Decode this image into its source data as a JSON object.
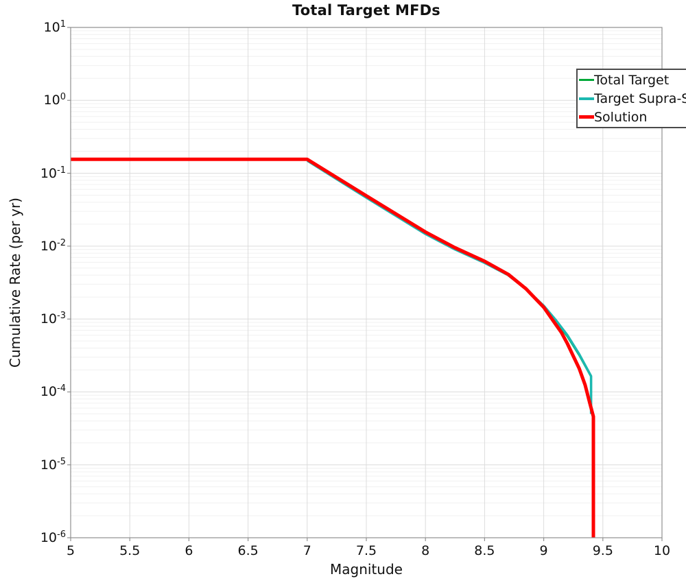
{
  "chart_data": {
    "type": "line",
    "title": "Total Target MFDs",
    "xlabel": "Magnitude",
    "ylabel": "Cumulative Rate (per yr)",
    "xlim": [
      5,
      10
    ],
    "ylim": [
      1e-06,
      10
    ],
    "yscale": "log",
    "grid": true,
    "grid_major_color": "#dcdcdc",
    "grid_minor_color": "#f0f0f0",
    "spine_color": "#8f8f8f",
    "legend_position": "upper right",
    "xticks": [
      "5",
      "5.5",
      "6",
      "6.5",
      "7",
      "7.5",
      "8",
      "8.5",
      "9",
      "9.5",
      "10"
    ],
    "yticks": [
      {
        "base": "10",
        "exp": "1"
      },
      {
        "base": "10",
        "exp": "0"
      },
      {
        "base": "10",
        "exp": "-1"
      },
      {
        "base": "10",
        "exp": "-2"
      },
      {
        "base": "10",
        "exp": "-3"
      },
      {
        "base": "10",
        "exp": "-4"
      },
      {
        "base": "10",
        "exp": "-5"
      },
      {
        "base": "10",
        "exp": "-6"
      }
    ],
    "series": [
      {
        "name": "Total Target",
        "color": "#00a838",
        "width": 3,
        "points": [
          [
            5.0,
            0.155
          ],
          [
            7.0,
            0.155
          ],
          [
            7.5,
            0.049
          ],
          [
            8.0,
            0.0156
          ],
          [
            8.25,
            0.0095
          ],
          [
            8.5,
            0.0062
          ],
          [
            8.7,
            0.0041
          ],
          [
            8.85,
            0.0026
          ],
          [
            9.0,
            0.00148
          ],
          [
            9.1,
            0.00095
          ],
          [
            9.2,
            0.00058
          ],
          [
            9.3,
            0.00032
          ],
          [
            9.4,
            0.000163
          ],
          [
            9.4,
            5e-05
          ]
        ]
      },
      {
        "name": "Target Supra-Seis",
        "color": "#1cb8b0",
        "width": 3.5,
        "points": [
          [
            7.0,
            0.149
          ],
          [
            7.5,
            0.0462
          ],
          [
            8.0,
            0.0147
          ],
          [
            8.25,
            0.009
          ],
          [
            8.5,
            0.0059
          ],
          [
            8.7,
            0.004
          ],
          [
            8.85,
            0.00258
          ],
          [
            9.0,
            0.00152
          ],
          [
            9.1,
            0.00098
          ],
          [
            9.2,
            0.0006
          ],
          [
            9.3,
            0.00033
          ],
          [
            9.4,
            0.000165
          ],
          [
            9.4,
            5e-05
          ]
        ]
      },
      {
        "name": "Solution",
        "color": "#fe0000",
        "width": 5,
        "points": [
          [
            5.0,
            0.155
          ],
          [
            7.0,
            0.155
          ],
          [
            7.5,
            0.049
          ],
          [
            8.0,
            0.0156
          ],
          [
            8.25,
            0.0095
          ],
          [
            8.5,
            0.0062
          ],
          [
            8.7,
            0.0041
          ],
          [
            8.85,
            0.0026
          ],
          [
            9.0,
            0.00145
          ],
          [
            9.1,
            0.00085
          ],
          [
            9.15,
            0.00065
          ],
          [
            9.2,
            0.00046
          ],
          [
            9.25,
            0.00031
          ],
          [
            9.3,
            0.00021
          ],
          [
            9.35,
            0.000125
          ],
          [
            9.39,
            7e-05
          ],
          [
            9.42,
            4.6e-05
          ],
          [
            9.42,
            1e-06
          ]
        ]
      }
    ]
  }
}
